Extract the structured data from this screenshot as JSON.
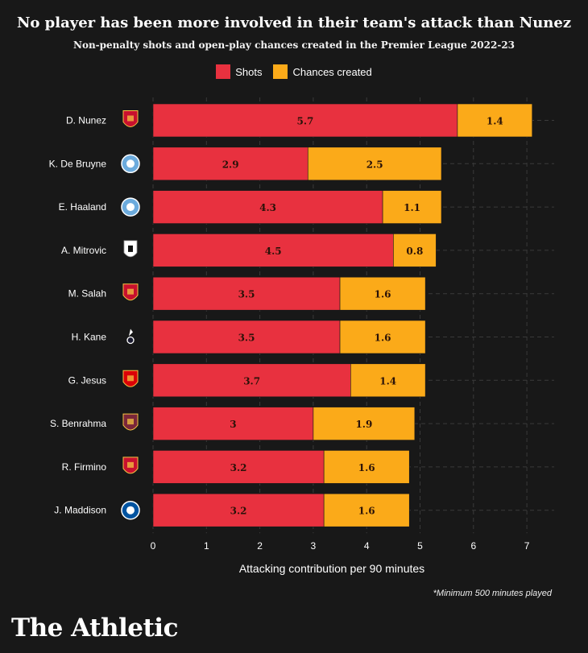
{
  "title": "No player has been more involved in their team's attack than Nunez",
  "subtitle": "Non-penalty shots and open-play chances created in the Premier League 2022-23",
  "legend": [
    {
      "label": "Shots",
      "color": "#e8313f"
    },
    {
      "label": "Chances created",
      "color": "#fbaa19"
    }
  ],
  "footnote": "*Minimum 500 minutes played",
  "brand": "The Athletic",
  "chart_data": {
    "type": "bar",
    "orientation": "horizontal",
    "stacked": true,
    "categories": [
      "D. Nunez",
      "K. De Bruyne",
      "E. Haaland",
      "A. Mitrovic",
      "M. Salah",
      "H. Kane",
      "G. Jesus",
      "S. Benrahma",
      "R. Firmino",
      "J. Maddison"
    ],
    "series": [
      {
        "name": "Shots",
        "color": "#e8313f",
        "values": [
          5.7,
          2.9,
          4.3,
          4.5,
          3.5,
          3.5,
          3.7,
          3,
          3.2,
          3.2
        ],
        "labels": [
          "5.7",
          "2.9",
          "4.3",
          "4.5",
          "3.5",
          "3.5",
          "3.7",
          "3",
          "3.2",
          "3.2"
        ]
      },
      {
        "name": "Chances created",
        "color": "#fbaa19",
        "values": [
          1.4,
          2.5,
          1.1,
          0.8,
          1.6,
          1.6,
          1.4,
          1.9,
          1.6,
          1.6
        ],
        "labels": [
          "1.4",
          "2.5",
          "1.1",
          "0.8",
          "1.6",
          "1.6",
          "1.4",
          "1.9",
          "1.6",
          "1.6"
        ]
      }
    ],
    "club_icons": [
      "liverpool-crest-icon",
      "man-city-crest-icon",
      "man-city-crest-icon",
      "fulham-crest-icon",
      "liverpool-crest-icon",
      "tottenham-crest-icon",
      "arsenal-crest-icon",
      "west-ham-crest-icon",
      "liverpool-crest-icon",
      "leicester-crest-icon"
    ],
    "club_colors": [
      "#c8102e",
      "#6cabdd",
      "#6cabdd",
      "#ffffff",
      "#c8102e",
      "#ffffff",
      "#db0007",
      "#7a263a",
      "#c8102e",
      "#0053a0"
    ],
    "xlabel": "Attacking contribution per 90 minutes",
    "xlim": [
      0,
      7
    ],
    "xticks": [
      "0",
      "1",
      "2",
      "3",
      "4",
      "5",
      "6",
      "7"
    ],
    "grid": true
  }
}
